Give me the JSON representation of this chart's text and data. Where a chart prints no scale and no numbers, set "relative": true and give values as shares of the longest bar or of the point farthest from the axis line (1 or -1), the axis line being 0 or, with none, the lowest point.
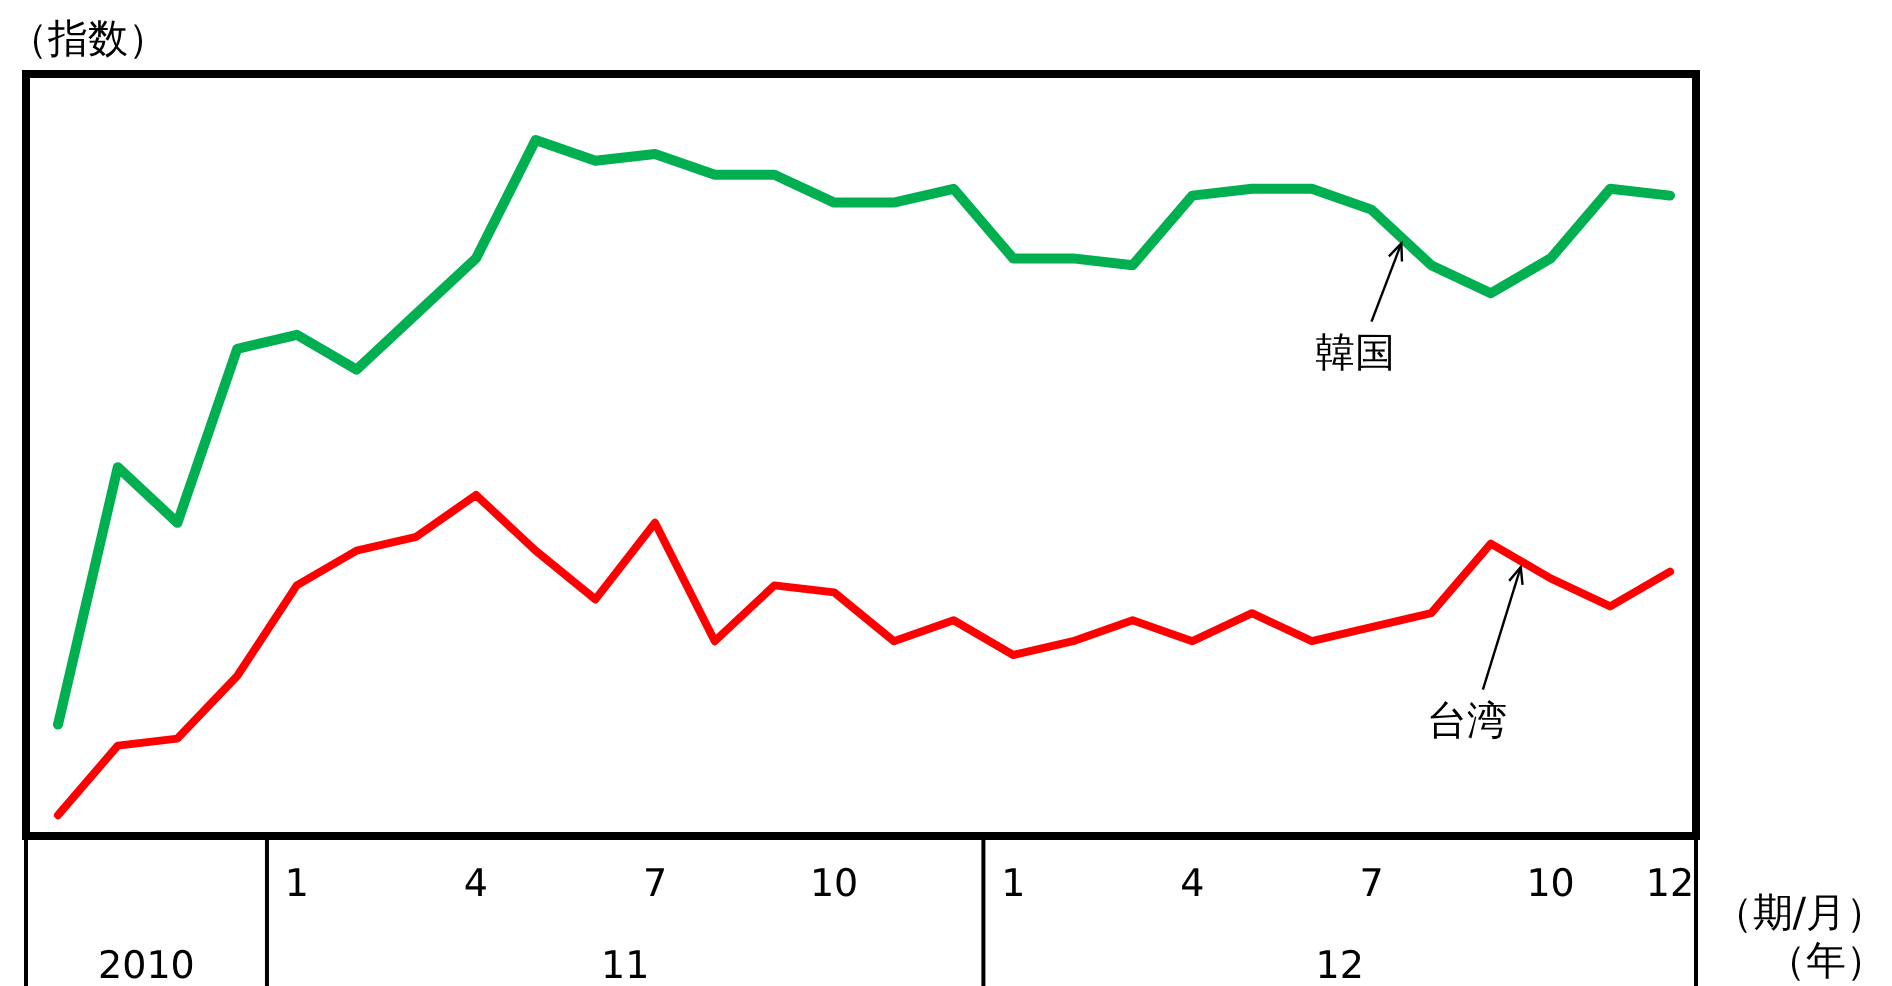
{
  "chart_data": {
    "type": "line",
    "relative": true,
    "ylabel": "（指数）",
    "xlabel": "（期/月）",
    "annotations": [
      "2010",
      "11",
      "12",
      "（年）"
    ],
    "categories": [
      null,
      null,
      null,
      null,
      "1",
      null,
      null,
      "4",
      null,
      null,
      "7",
      null,
      null,
      "10",
      null,
      null,
      "1",
      null,
      null,
      "4",
      null,
      null,
      "7",
      null,
      null,
      "10",
      null,
      "12"
    ],
    "series": [
      {
        "name": "韓国",
        "color": "#00b050",
        "values": [
          0.16,
          0.53,
          0.45,
          0.7,
          0.72,
          0.67,
          0.75,
          0.83,
          1.0,
          0.97,
          0.98,
          0.95,
          0.95,
          0.91,
          0.91,
          0.93,
          0.83,
          0.83,
          0.82,
          0.92,
          0.93,
          0.93,
          0.9,
          0.82,
          0.78,
          0.83,
          0.93,
          0.92
        ]
      },
      {
        "name": "台湾",
        "color": "#ff0000",
        "values": [
          0.03,
          0.13,
          0.14,
          0.23,
          0.36,
          0.41,
          0.43,
          0.49,
          0.41,
          0.34,
          0.45,
          0.28,
          0.36,
          0.35,
          0.28,
          0.31,
          0.26,
          0.28,
          0.31,
          0.28,
          0.32,
          0.28,
          0.3,
          0.32,
          0.42,
          0.37,
          0.33,
          0.38
        ]
      }
    ]
  }
}
